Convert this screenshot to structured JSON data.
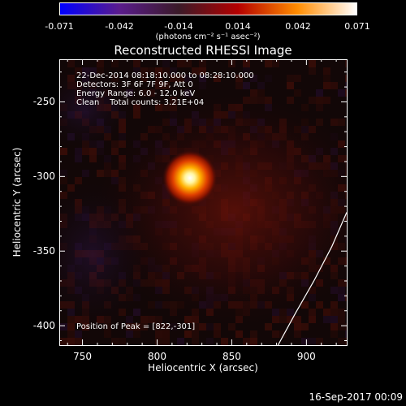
{
  "colorbar": {
    "ticks": [
      "-0.071",
      "-0.042",
      "-0.014",
      "0.014",
      "0.042",
      "0.071"
    ],
    "units": "(photons cm⁻² s⁻¹ asec⁻²)",
    "colors": [
      "#0000ff",
      "#5a1c8c",
      "#3a1a28",
      "#b40000",
      "#ff8c00",
      "#ffffff"
    ]
  },
  "title": "Reconstructed RHESSI Image",
  "annotation": {
    "time": "22-Dec-2014 08:18:10.000 to 08:28:10.000",
    "detectors": "Detectors: 3F 6F 7F 9F, Att 0",
    "energy": "Energy Range: 6.0 - 12.0 keV",
    "clean": "Clean    Total counts: 3.21E+04",
    "peak": "Position of Peak = [822,-301]"
  },
  "chart_data": {
    "type": "heatmap",
    "title": "Reconstructed RHESSI Image",
    "xlabel": "Heliocentric X (arcsec)",
    "ylabel": "Heliocentric Y (arcsec)",
    "xlim": [
      735,
      927
    ],
    "ylim": [
      -413,
      -222
    ],
    "xticks": [
      "750",
      "800",
      "850",
      "900"
    ],
    "yticks": [
      "-250",
      "-300",
      "-350",
      "-400"
    ],
    "xtick_values": [
      750,
      800,
      850,
      900
    ],
    "ytick_values": [
      -250,
      -300,
      -350,
      -400
    ],
    "peak": {
      "x": 822,
      "y": -301
    },
    "colorbar_range": [
      -0.071,
      0.071
    ],
    "limb_curve": [
      [
        927,
        -324
      ],
      [
        917,
        -347
      ],
      [
        905,
        -370
      ],
      [
        893,
        -391
      ],
      [
        881,
        -413
      ]
    ]
  },
  "footer": "16-Sep-2017 00:09"
}
